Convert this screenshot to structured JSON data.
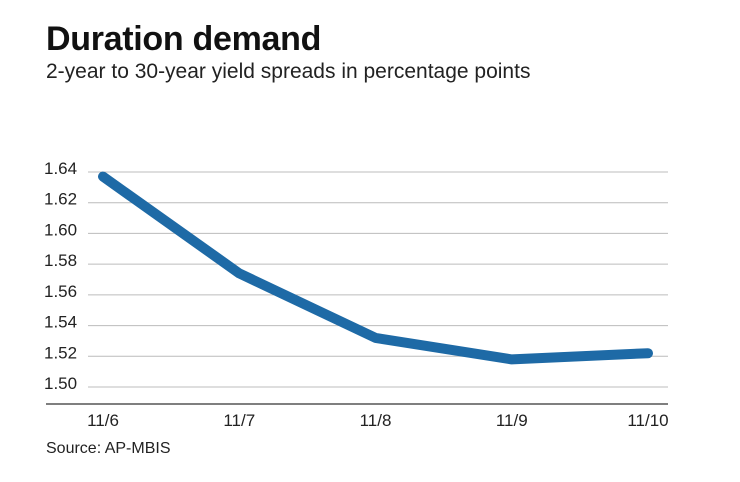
{
  "title": "Duration demand",
  "subtitle": "2-year to 30-year yield spreads in percentage points",
  "source": "Source: AP-MBIS",
  "colors": {
    "line": "#1e6aa6",
    "grid": "#bcbcbc",
    "axis": "#555555"
  },
  "chart_data": {
    "type": "line",
    "title": "Duration demand",
    "subtitle": "2-year to 30-year yield spreads in percentage points",
    "categories": [
      "11/6",
      "11/7",
      "11/8",
      "11/9",
      "11/10"
    ],
    "series": [
      {
        "values": [
          1.637,
          1.574,
          1.532,
          1.518,
          1.522
        ]
      }
    ],
    "yticks": [
      "1.64",
      "1.62",
      "1.60",
      "1.58",
      "1.56",
      "1.54",
      "1.52",
      "1.50"
    ],
    "ylim": [
      1.49,
      1.64
    ],
    "xlabel": "",
    "ylabel": "",
    "grid": true
  }
}
